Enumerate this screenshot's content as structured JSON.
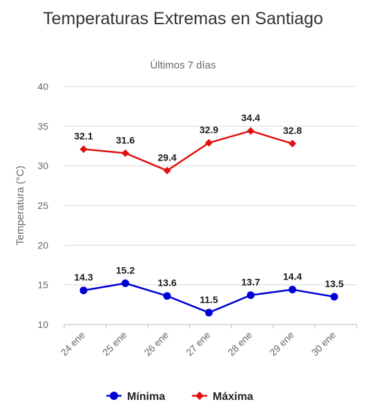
{
  "chart_data": {
    "type": "line",
    "title": "Temperaturas Extremas en Santiago",
    "subtitle": "Últimos 7 días",
    "ylabel": "Temperatura (°C)",
    "xlabel": "",
    "categories": [
      "24 ene",
      "25 ene",
      "26 ene",
      "27 ene",
      "28 ene",
      "29 ene",
      "30 ene"
    ],
    "ylim": [
      10,
      40
    ],
    "yticks": [
      10,
      15,
      20,
      25,
      30,
      35,
      40
    ],
    "grid": true,
    "legend_position": "bottom",
    "series": [
      {
        "name": "Mínima",
        "color": "#0000d4",
        "marker": "circle",
        "values": [
          14.3,
          15.2,
          13.6,
          11.5,
          13.7,
          14.4,
          13.5
        ]
      },
      {
        "name": "Máxima",
        "color": "#e01010",
        "marker": "diamond",
        "values": [
          32.1,
          31.6,
          29.4,
          32.9,
          34.4,
          32.8,
          null
        ]
      }
    ]
  }
}
